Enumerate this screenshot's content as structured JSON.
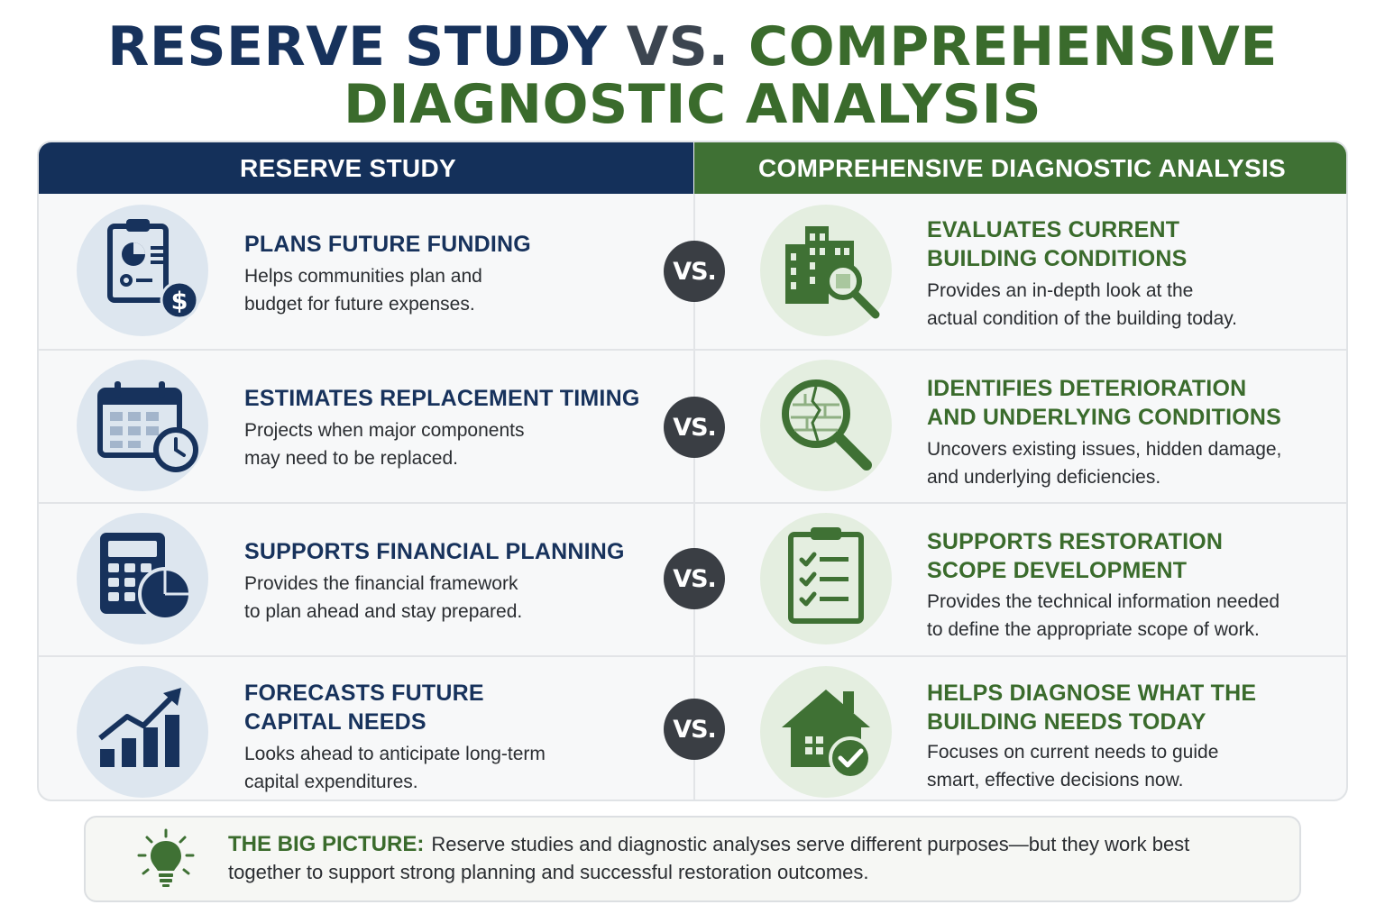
{
  "title": {
    "part1": "RESERVE STUDY",
    "vs": "VS.",
    "part2": "COMPREHENSIVE",
    "line2": "DIAGNOSTIC ANALYSIS"
  },
  "columns": {
    "left": "RESERVE STUDY",
    "right": "COMPREHENSIVE DIAGNOSTIC ANALYSIS"
  },
  "vs_label": "VS.",
  "rows": [
    {
      "left": {
        "title_lines": [
          "PLANS FUTURE FUNDING"
        ],
        "desc_lines": [
          "Helps communities plan and",
          "budget for future expenses."
        ],
        "icon": "clipboard-dollar-icon"
      },
      "right": {
        "title_lines": [
          "EVALUATES CURRENT",
          "BUILDING CONDITIONS"
        ],
        "desc_lines": [
          "Provides an in-depth look at the",
          "actual condition of the building today."
        ],
        "icon": "building-magnifier-icon"
      }
    },
    {
      "left": {
        "title_lines": [
          "ESTIMATES REPLACEMENT TIMING"
        ],
        "desc_lines": [
          "Projects when major components",
          "may need to be replaced."
        ],
        "icon": "calendar-clock-icon"
      },
      "right": {
        "title_lines": [
          "IDENTIFIES DETERIORATION",
          "AND UNDERLYING CONDITIONS"
        ],
        "desc_lines": [
          "Uncovers existing issues, hidden damage,",
          "and underlying deficiencies."
        ],
        "icon": "magnifier-crack-icon"
      }
    },
    {
      "left": {
        "title_lines": [
          "SUPPORTS FINANCIAL PLANNING"
        ],
        "desc_lines": [
          "Provides the financial framework",
          "to plan ahead and stay prepared."
        ],
        "icon": "calculator-pie-icon"
      },
      "right": {
        "title_lines": [
          "SUPPORTS RESTORATION",
          "SCOPE DEVELOPMENT"
        ],
        "desc_lines": [
          "Provides the technical information needed",
          "to define the appropriate scope of work."
        ],
        "icon": "checklist-icon"
      }
    },
    {
      "left": {
        "title_lines": [
          "FORECASTS FUTURE",
          "CAPITAL NEEDS"
        ],
        "desc_lines": [
          "Looks ahead to anticipate long-term",
          "capital expenditures."
        ],
        "icon": "growth-chart-icon"
      },
      "right": {
        "title_lines": [
          "HELPS DIAGNOSE WHAT THE",
          "BUILDING NEEDS TODAY"
        ],
        "desc_lines": [
          "Focuses on current needs to guide",
          "smart, effective decisions now."
        ],
        "icon": "house-check-icon"
      }
    }
  ],
  "big_picture": {
    "label": "THE BIG PICTURE:",
    "text": "Reserve studies and diagnostic analyses serve different purposes—but they work best together to support strong planning and successful restoration outcomes.",
    "icon": "lightbulb-icon"
  },
  "colors": {
    "navy": "#14305a",
    "green": "#3f7134",
    "vs_badge": "#3a3e44"
  }
}
